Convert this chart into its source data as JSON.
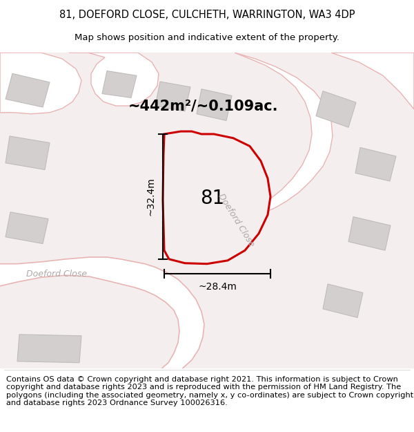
{
  "title_line1": "81, DOEFORD CLOSE, CULCHETH, WARRINGTON, WA3 4DP",
  "title_line2": "Map shows position and indicative extent of the property.",
  "footer_text": "Contains OS data © Crown copyright and database right 2021. This information is subject to Crown copyright and database rights 2023 and is reproduced with the permission of HM Land Registry. The polygons (including the associated geometry, namely x, y co-ordinates) are subject to Crown copyright and database rights 2023 Ordnance Survey 100026316.",
  "area_label": "~442m²/~0.109ac.",
  "dim_width": "~28.4m",
  "dim_height": "~32.4m",
  "label_81": "81",
  "street_label_left": "Doeford Close",
  "street_label_right": "Doeford Close",
  "map_bg": "#f5eeee",
  "white_road_color": "#ffffff",
  "building_fill": "#d3cfcf",
  "building_edge": "#c0bcbc",
  "road_pink_fill": "#f0dada",
  "road_pink_edge": "#e8b4b4",
  "property_fill": "#f5eeee",
  "property_edge": "#cc0000",
  "dim_line_color": "#000000",
  "label_color": "#000000",
  "street_color": "#b0a8a8",
  "title_fontsize": 10.5,
  "subtitle_fontsize": 9.5,
  "footer_fontsize": 8.2,
  "area_fontsize": 15,
  "num_fontsize": 20,
  "street_fontsize": 9,
  "dim_fontsize": 10
}
